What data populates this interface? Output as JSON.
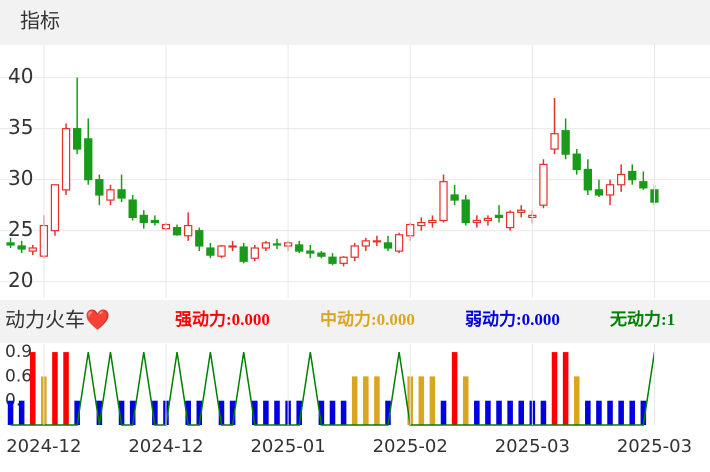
{
  "header": {
    "title": "指标"
  },
  "chart_data": [
    {
      "type": "candlestick",
      "up_color": "#e4302a",
      "down_color": "#1a9a1a",
      "grid": true,
      "ylim": [
        18.4,
        43.2
      ],
      "yticks": [
        20,
        25,
        30,
        35,
        40
      ],
      "open": [
        23.8,
        23.5,
        23.0,
        22.5,
        25,
        29,
        35,
        34,
        30,
        28,
        29,
        28,
        26.5,
        26,
        25.2,
        25.3,
        24.5,
        25,
        23.3,
        22.5,
        23.4,
        23.4,
        22.3,
        23.3,
        23.7,
        23.5,
        23.6,
        23,
        22.8,
        22.4,
        21.8,
        22.4,
        23.5,
        24,
        23.8,
        23,
        24.5,
        25.5,
        25.8,
        26,
        28.5,
        28,
        25.8,
        26,
        26.5,
        25.3,
        26.8,
        26.3,
        27.5,
        33,
        34.8,
        32.5,
        31,
        29,
        28.5,
        29.5,
        30.8,
        29.8,
        29
      ],
      "high": [
        24.3,
        24,
        23.6,
        26.5,
        29.5,
        35.5,
        40,
        36,
        30.5,
        29.5,
        30.5,
        28.5,
        27,
        26.5,
        25.8,
        25.6,
        26.8,
        25.3,
        23.8,
        23.6,
        24,
        23.8,
        23.6,
        24,
        24.2,
        24,
        24,
        23.6,
        23,
        22.8,
        22.5,
        23.8,
        24.3,
        24.5,
        24.5,
        24.8,
        25.8,
        26.3,
        26.5,
        30.5,
        29.5,
        28.5,
        26.5,
        26.5,
        27.5,
        27,
        27.5,
        27,
        32,
        38,
        36,
        33,
        32,
        30,
        30,
        31.5,
        31.5,
        30.8,
        29.5
      ],
      "low": [
        23.3,
        22.8,
        22.6,
        22.3,
        24.5,
        28.5,
        32.5,
        29.5,
        27.5,
        27.5,
        27.8,
        26,
        25.2,
        25.5,
        25,
        24.5,
        24,
        23,
        22.3,
        22.3,
        23,
        21.8,
        22,
        23,
        23.2,
        23,
        22.8,
        22.3,
        22.3,
        21.6,
        21.5,
        22,
        23,
        23.5,
        23,
        22.8,
        24,
        25,
        25.3,
        25.8,
        27.5,
        25.5,
        25.3,
        25.5,
        25.8,
        25,
        26.3,
        25.7,
        27.2,
        32.5,
        32,
        30.5,
        28.5,
        28.3,
        27.5,
        28.8,
        29.5,
        29,
        27.5
      ],
      "close": [
        23.6,
        23.2,
        23.3,
        25.5,
        29.5,
        35,
        33,
        30,
        28.5,
        29,
        28.2,
        26.3,
        25.8,
        25.8,
        25.6,
        24.6,
        25.5,
        23.5,
        22.6,
        23.5,
        23.5,
        22,
        23.3,
        23.8,
        23.6,
        23.8,
        23,
        22.8,
        22.5,
        21.8,
        22.4,
        23.5,
        24,
        24,
        23.3,
        24.6,
        25.6,
        25.8,
        26,
        29.8,
        28,
        25.8,
        26,
        26.2,
        26.3,
        26.8,
        27,
        26.5,
        31.5,
        34.5,
        32.5,
        31,
        29,
        28.5,
        29.5,
        30.5,
        30,
        29.2,
        27.8
      ]
    },
    {
      "type": "bar",
      "title": "动力火车❤️",
      "ylim": [
        0,
        1.0
      ],
      "yticks": [
        0.9,
        0.6,
        {
          "value": 0.3,
          "label": "0."
        }
      ],
      "categories": [
        null,
        null,
        null,
        "2024-12",
        null,
        null,
        null,
        null,
        null,
        null,
        null,
        null,
        null,
        null,
        "2024-12",
        null,
        null,
        null,
        null,
        null,
        null,
        null,
        null,
        null,
        null,
        "2025-01",
        null,
        null,
        null,
        null,
        null,
        null,
        null,
        null,
        null,
        null,
        "2025-02",
        null,
        null,
        null,
        null,
        null,
        null,
        null,
        null,
        null,
        null,
        "2025-03",
        null,
        null,
        null,
        null,
        null,
        null,
        null,
        null,
        null,
        null,
        "2025-03"
      ],
      "series": [
        {
          "name": "强动力:0.000",
          "color": "#ff0000",
          "values": [
            0,
            0,
            0.9,
            0,
            0.9,
            0.9,
            0,
            0,
            0,
            0,
            0,
            0,
            0,
            0,
            0,
            0,
            0,
            0,
            0,
            0,
            0,
            0,
            0,
            0,
            0,
            0,
            0,
            0,
            0,
            0,
            0,
            0,
            0,
            0,
            0,
            0,
            0,
            0,
            0,
            0,
            0.9,
            0,
            0,
            0,
            0,
            0,
            0,
            0,
            0,
            0.9,
            0.9,
            0,
            0,
            0,
            0,
            0,
            0,
            0,
            0
          ]
        },
        {
          "name": "中动力:0.000",
          "color": "#daa520",
          "values": [
            0,
            0,
            0,
            0.6,
            0,
            0,
            0,
            0,
            0,
            0,
            0,
            0,
            0,
            0,
            0,
            0,
            0,
            0,
            0,
            0,
            0,
            0,
            0,
            0,
            0,
            0,
            0,
            0,
            0,
            0,
            0,
            0.6,
            0.6,
            0.6,
            0,
            0,
            0.6,
            0.6,
            0.6,
            0,
            0,
            0.6,
            0,
            0,
            0,
            0,
            0,
            0,
            0,
            0,
            0,
            0.6,
            0,
            0,
            0,
            0,
            0,
            0,
            0
          ]
        },
        {
          "name": "弱动力:0.000",
          "color": "#0000e0",
          "values": [
            0.3,
            0.3,
            0,
            0,
            0,
            0,
            0.3,
            0,
            0.3,
            0,
            0.3,
            0.3,
            0,
            0.3,
            0.3,
            0,
            0.3,
            0.3,
            0,
            0.3,
            0.3,
            0,
            0.3,
            0.3,
            0.3,
            0.3,
            0.3,
            0,
            0.3,
            0.3,
            0.3,
            0,
            0,
            0,
            0.3,
            0,
            0,
            0,
            0,
            0.3,
            0,
            0,
            0.3,
            0.3,
            0.3,
            0.3,
            0.3,
            0.3,
            0.3,
            0,
            0,
            0,
            0.3,
            0.3,
            0.3,
            0.3,
            0.3,
            0.3,
            0
          ]
        },
        {
          "name": "无动力:1",
          "color": "#008000",
          "line": true,
          "values": [
            0,
            0,
            0,
            0,
            0,
            0,
            0,
            0.9,
            0,
            0.9,
            0,
            0,
            0.9,
            0,
            0,
            0.9,
            0,
            0,
            0.9,
            0,
            0,
            0.9,
            0,
            0,
            0,
            0,
            0,
            0.9,
            0,
            0,
            0,
            0,
            0,
            0,
            0,
            0.9,
            0,
            0,
            0,
            0,
            0,
            0,
            0,
            0,
            0,
            0,
            0,
            0,
            0,
            0,
            0,
            0,
            0,
            0,
            0,
            0,
            0,
            0,
            0.9
          ]
        }
      ]
    }
  ]
}
